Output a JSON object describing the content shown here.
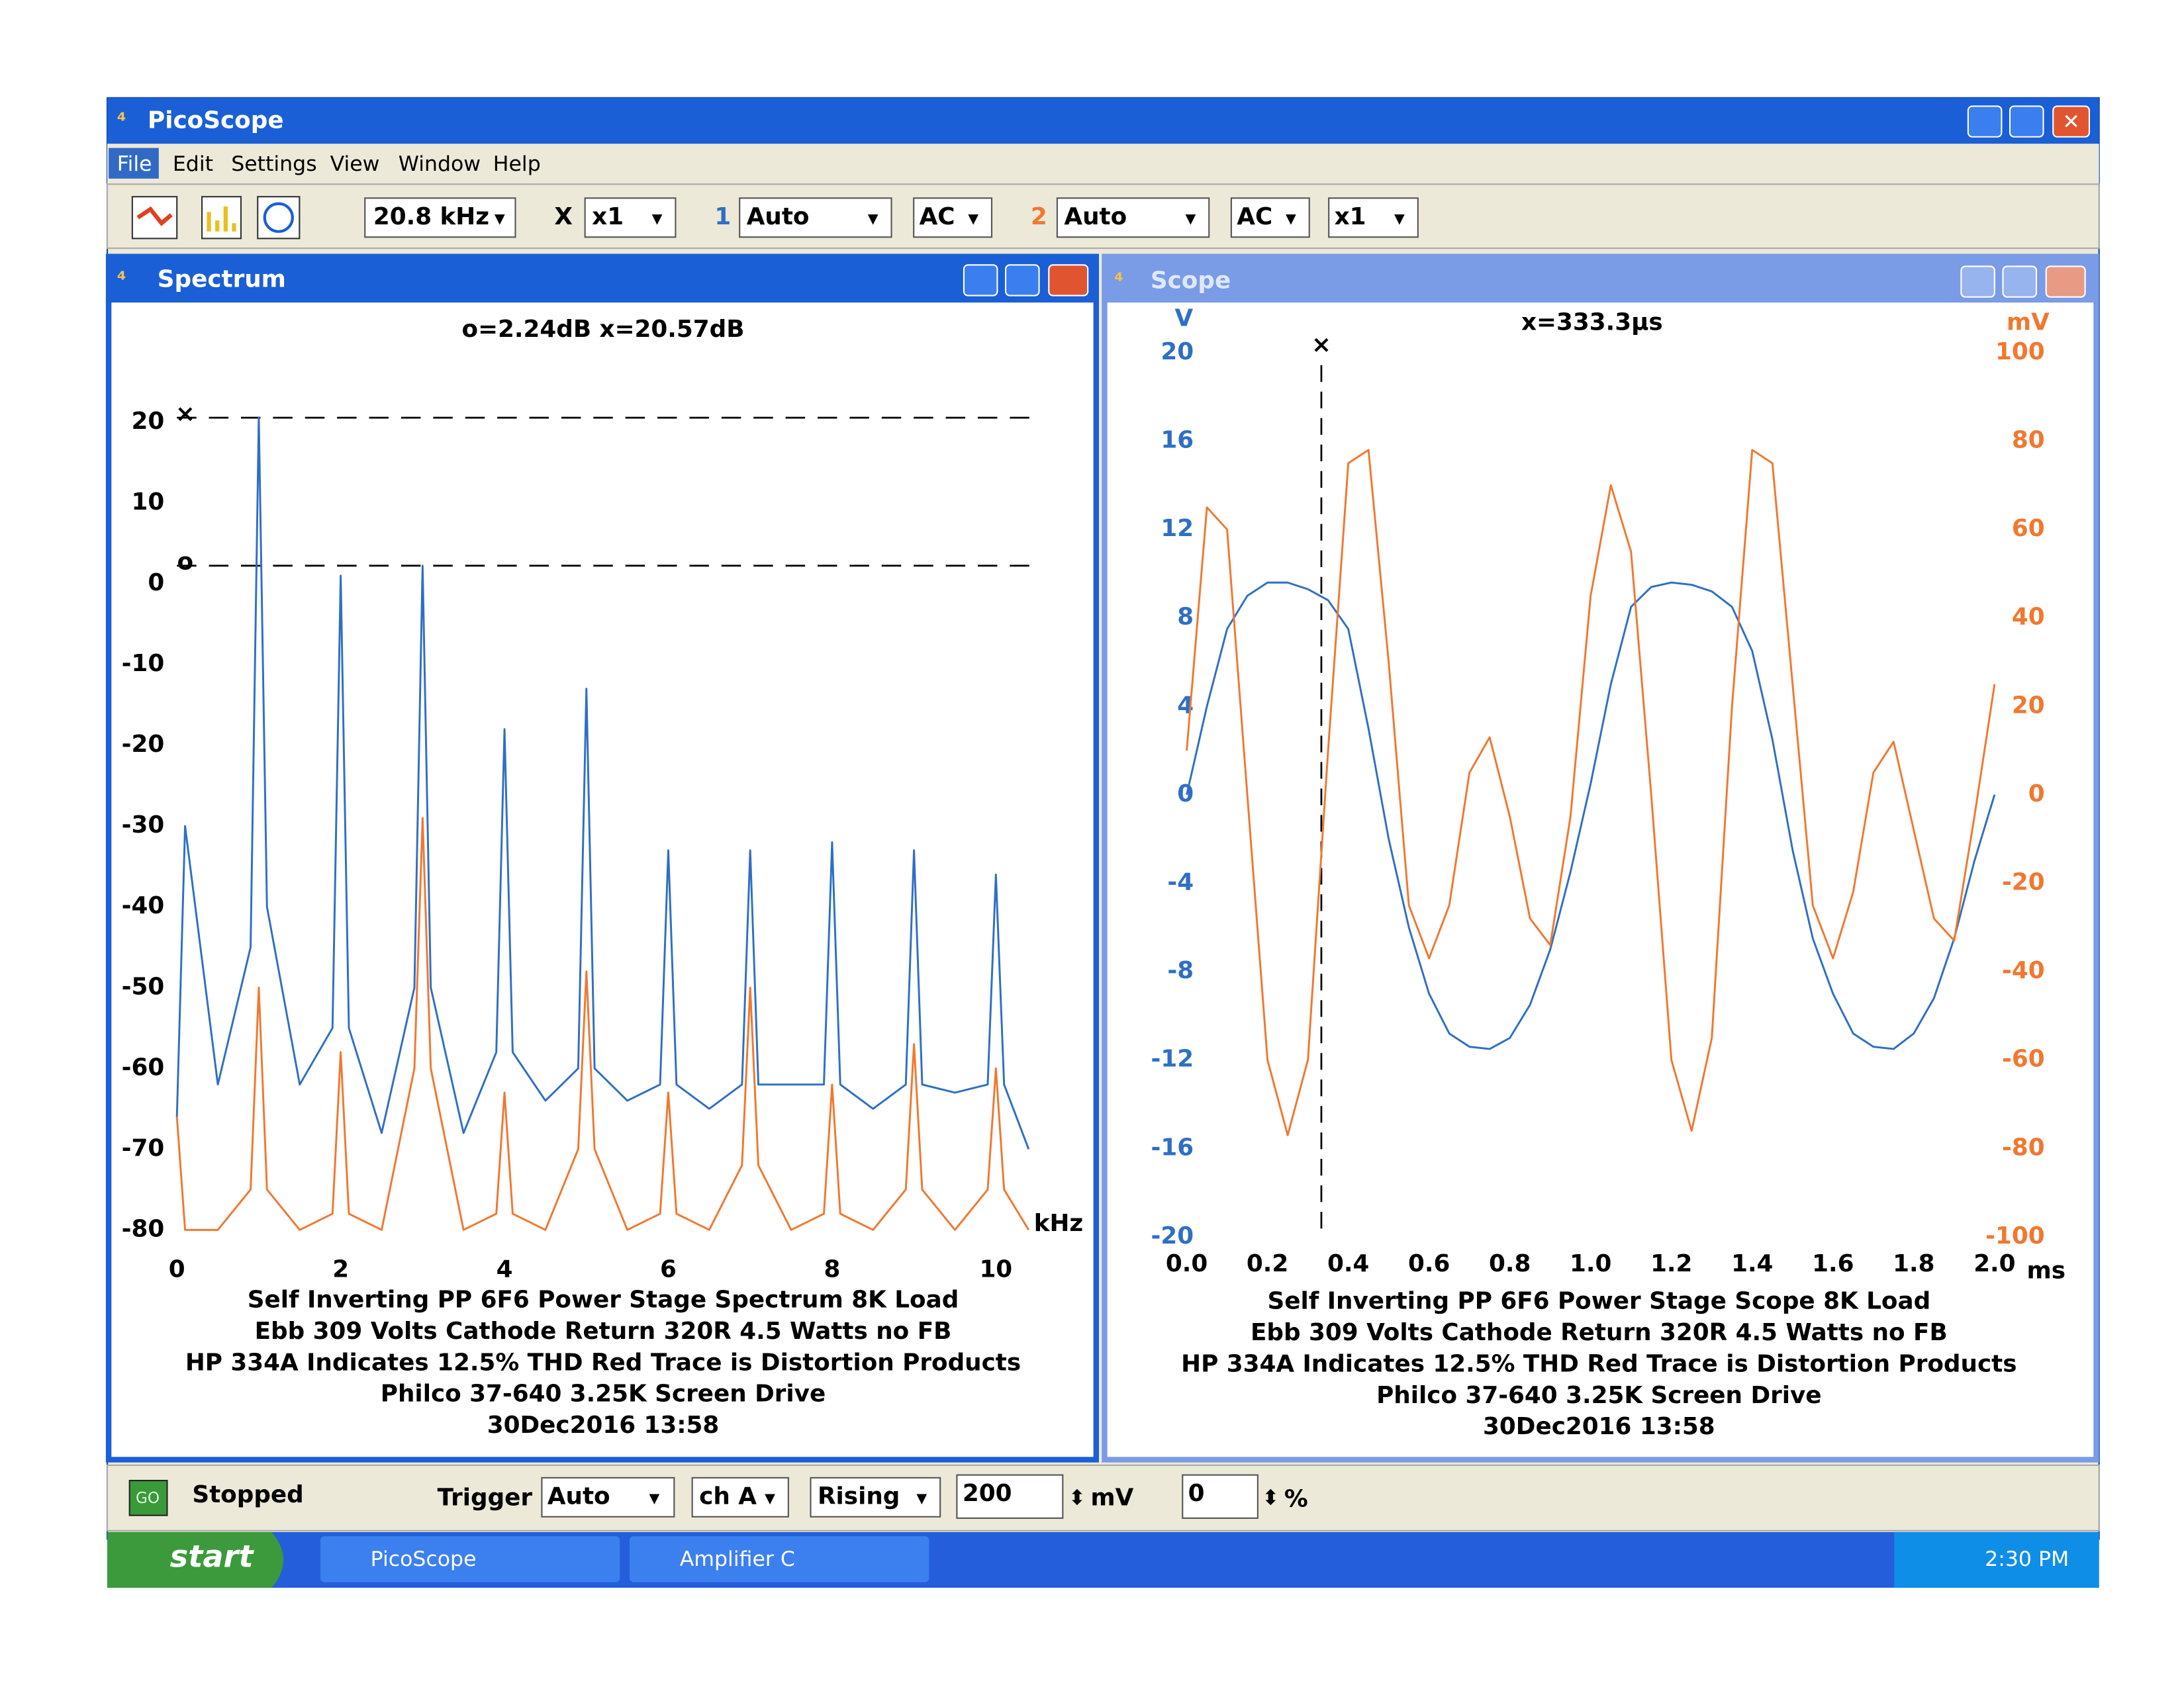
{
  "window": {
    "title": "PicoScope"
  },
  "menu": [
    "File",
    "Edit",
    "Settings",
    "View",
    "Window",
    "Help"
  ],
  "toolbar": {
    "timebase": "20.8 kHz",
    "x_label": "X",
    "x_mult": "x1",
    "ch1": "1",
    "ch1_range": "Auto",
    "ch1_coupling": "AC",
    "ch2": "2",
    "ch2_range": "Auto",
    "ch2_coupling": "AC",
    "ch2_mult": "x1"
  },
  "chart_data": [
    {
      "type": "line",
      "window_title": "Spectrum",
      "readout": "o=2.24dB  x=20.57dB",
      "x_unit": "kHz",
      "x": [
        0,
        0.1,
        0.5,
        0.9,
        1,
        1.1,
        1.5,
        1.9,
        2,
        2.1,
        2.5,
        2.9,
        3,
        3.1,
        3.5,
        3.9,
        4,
        4.1,
        4.5,
        4.9,
        5,
        5.1,
        5.5,
        5.9,
        6,
        6.1,
        6.5,
        6.9,
        7,
        7.1,
        7.5,
        7.9,
        8,
        8.1,
        8.5,
        8.9,
        9,
        9.1,
        9.5,
        9.9,
        10,
        10.1,
        10.4
      ],
      "series": [
        {
          "color": "#2f6fc4",
          "values": [
            -66,
            -30,
            -62,
            -45,
            20.57,
            -40,
            -62,
            -55,
            1,
            -55,
            -68,
            -50,
            2.24,
            -50,
            -68,
            -58,
            -18,
            -58,
            -64,
            -60,
            -13,
            -60,
            -64,
            -62,
            -33,
            -62,
            -65,
            -62,
            -33,
            -62,
            -62,
            -62,
            -32,
            -62,
            -65,
            -62,
            -33,
            -62,
            -63,
            -62,
            -36,
            -62,
            -70
          ]
        },
        {
          "color": "#f07830",
          "values": [
            -66,
            -80,
            -80,
            -75,
            -50,
            -75,
            -80,
            -78,
            -58,
            -78,
            -80,
            -60,
            -29,
            -60,
            -80,
            -78,
            -63,
            -78,
            -80,
            -70,
            -48,
            -70,
            -80,
            -78,
            -63,
            -78,
            -80,
            -72,
            -50,
            -72,
            -80,
            -78,
            -62,
            -78,
            -80,
            -75,
            -57,
            -75,
            -80,
            -75,
            -60,
            -75,
            -80
          ]
        }
      ],
      "rulers": [
        {
          "label": "×",
          "value": 20.57
        },
        {
          "label": "o",
          "value": 2.24
        }
      ],
      "xlim": [
        0,
        10.5
      ],
      "ylim": [
        -82,
        29
      ],
      "xticks": [
        0,
        2,
        4,
        6,
        8,
        10
      ],
      "yticks": [
        20,
        10,
        0,
        -10,
        -20,
        -30,
        -40,
        -50,
        -60,
        -70,
        -80
      ],
      "caption": [
        "Self Inverting PP 6F6 Power Stage Spectrum 8K Load",
        "Ebb 309 Volts Cathode Return 320R 4.5 Watts no FB",
        "HP 334A Indicates 12.5% THD Red Trace is Distortion Products",
        "Philco 37-640 3.25K Screen Drive",
        "30Dec2016  13:58"
      ]
    },
    {
      "type": "line",
      "window_title": "Scope",
      "readout": "x=333.3µs",
      "y_unit": "V",
      "y2_unit": "mV",
      "x_unit": "ms",
      "x": [
        0,
        0.05,
        0.1,
        0.15,
        0.2,
        0.25,
        0.3,
        0.35,
        0.4,
        0.45,
        0.5,
        0.55,
        0.6,
        0.65,
        0.7,
        0.75,
        0.8,
        0.85,
        0.9,
        0.95,
        1.0,
        1.05,
        1.1,
        1.15,
        1.2,
        1.25,
        1.3,
        1.35,
        1.4,
        1.45,
        1.5,
        1.55,
        1.6,
        1.65,
        1.7,
        1.75,
        1.8,
        1.85,
        1.9,
        1.95,
        2.0
      ],
      "series": [
        {
          "color": "#2f6fc4",
          "values": [
            0,
            4,
            7.5,
            9,
            9.6,
            9.6,
            9.3,
            8.8,
            7.5,
            3,
            -2,
            -6,
            -9,
            -10.8,
            -11.4,
            -11.5,
            -11,
            -9.5,
            -7,
            -3.5,
            0.5,
            5,
            8.5,
            9.4,
            9.6,
            9.5,
            9.2,
            8.5,
            6.5,
            2.5,
            -2.5,
            -6.5,
            -9,
            -10.8,
            -11.4,
            -11.5,
            -10.8,
            -9.2,
            -6.5,
            -3,
            0
          ]
        },
        {
          "color": "#f07830",
          "axis": "y2",
          "values": [
            10,
            65,
            60,
            0,
            -60,
            -77,
            -60,
            10,
            75,
            78,
            30,
            -25,
            -37,
            -25,
            5,
            13,
            -5,
            -28,
            -34,
            -5,
            45,
            70,
            55,
            0,
            -60,
            -76,
            -55,
            20,
            78,
            75,
            25,
            -25,
            -37,
            -22,
            5,
            12,
            -8,
            -28,
            -33,
            -5,
            25
          ]
        }
      ],
      "cursor": {
        "label": "×",
        "value": 0.3333
      },
      "xlim": [
        0,
        2
      ],
      "ylim": [
        -20,
        20
      ],
      "y2lim": [
        -100,
        100
      ],
      "xticks": [
        {
          "value": 0,
          "label": "0.0"
        },
        {
          "value": 0.2,
          "label": "0.2"
        },
        {
          "value": 0.4,
          "label": "0.4"
        },
        {
          "value": 0.6,
          "label": "0.6"
        },
        {
          "value": 0.8,
          "label": "0.8"
        },
        {
          "value": 1,
          "label": "1.0"
        },
        {
          "value": 1.2,
          "label": "1.2"
        },
        {
          "value": 1.4,
          "label": "1.4"
        },
        {
          "value": 1.6,
          "label": "1.6"
        },
        {
          "value": 1.8,
          "label": "1.8"
        },
        {
          "value": 2,
          "label": "2.0"
        }
      ],
      "yticks": [
        20,
        16,
        12,
        8,
        4,
        0,
        -4,
        -8,
        -12,
        -16,
        -20
      ],
      "y2ticks": [
        100,
        80,
        60,
        40,
        20,
        0,
        -20,
        -40,
        -60,
        -80,
        -100
      ],
      "caption": [
        "Self Inverting PP 6F6 Power Stage Scope 8K Load",
        "Ebb 309 Volts Cathode Return 320R 4.5 Watts no FB",
        "HP 334A Indicates 12.5% THD Red Trace is Distortion Products",
        "Philco 37-640 3.25K Screen Drive",
        "30Dec2016  13:58"
      ]
    }
  ],
  "status_bar": {
    "go": "GO",
    "state": "Stopped",
    "trigger_label": "Trigger",
    "trigger_mode": "Auto",
    "channel": "ch A",
    "edge": "Rising",
    "level": "200",
    "level_unit": "mV",
    "delay": "0",
    "delay_unit": "%"
  },
  "taskbar": {
    "start": "start",
    "tasks": [
      "PicoScope",
      "Amplifier C"
    ],
    "clock": "2:30 PM"
  }
}
